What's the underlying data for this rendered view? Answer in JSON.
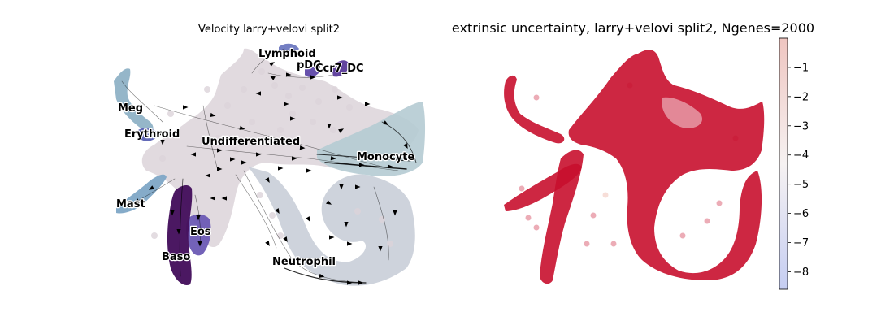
{
  "chart_data": [
    {
      "type": "scatter",
      "subtype": "velocity-stream-embedding",
      "title": "Velocity larry+velovi split2",
      "xlabel": "",
      "ylabel": "",
      "axes_visible": false,
      "grid": false,
      "cluster_labels": [
        "Lymphoid",
        "pDC",
        "Ccr7_DC",
        "Meg",
        "Erythroid",
        "Undifferentiated",
        "Monocyte",
        "Mast",
        "Eos",
        "Baso",
        "Neutrophil"
      ],
      "cluster_colors": {
        "Undifferentiated": "#dcd3d9",
        "Monocyte": "#b5cbd3",
        "Neutrophil": "#c9ced8",
        "Meg": "#8fb2c6",
        "Erythroid": "#5b62b4",
        "Mast": "#7ea6c6",
        "Eos": "#6b5ab4",
        "Baso": "#45115d",
        "Lymphoid": "#6d78c0",
        "pDC": "#5f48a8",
        "Ccr7_DC": "#5a3a9a"
      },
      "stream_color": "#000000"
    },
    {
      "type": "scatter",
      "subtype": "continuous-color-embedding",
      "title": "extrinsic uncertainty, larry+velovi split2, Ngenes=2000",
      "xlabel": "",
      "ylabel": "",
      "axes_visible": false,
      "grid": false,
      "point_color": "#c8102e",
      "colorbar": {
        "cmap": "coolwarm",
        "range": [
          -8.6,
          0
        ],
        "ticks": [
          -1,
          -2,
          -3,
          -4,
          -5,
          -6,
          -7,
          -8
        ],
        "tick_labels": [
          "−1",
          "−2",
          "−3",
          "−4",
          "−5",
          "−6",
          "−7",
          "−8"
        ]
      }
    }
  ]
}
